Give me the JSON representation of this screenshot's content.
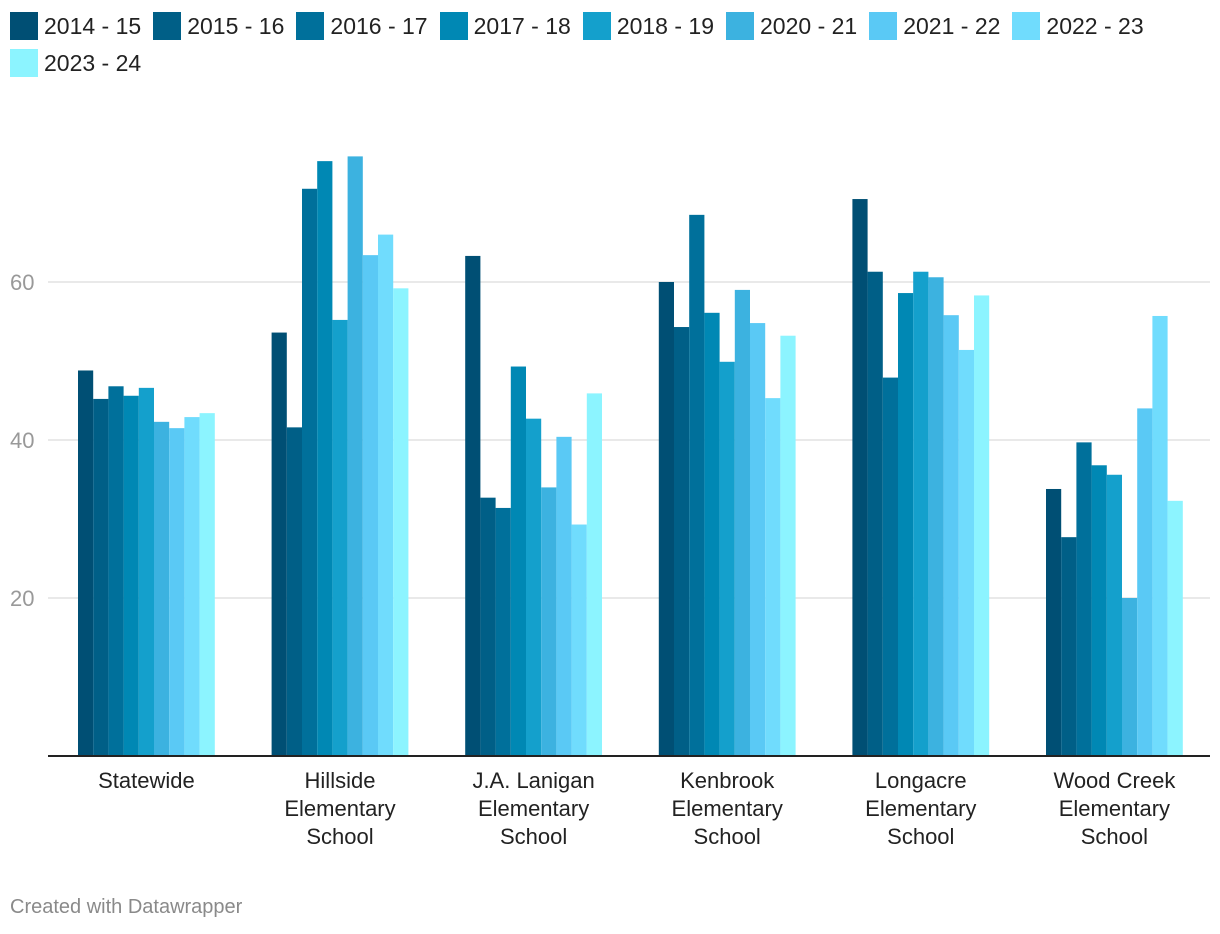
{
  "chart_data": {
    "type": "bar",
    "title": "",
    "xlabel": "",
    "ylabel": "",
    "ylim": [
      0,
      80
    ],
    "yticks": [
      20,
      40,
      60
    ],
    "grid": true,
    "legend_position": "top-left",
    "categories": [
      "Statewide",
      "Hillside Elementary School",
      "J.A. Lanigan Elementary School",
      "Kenbrook Elementary School",
      "Longacre Elementary School",
      "Wood Creek Elementary School"
    ],
    "category_label_lines": [
      [
        "Statewide"
      ],
      [
        "Hillside",
        "Elementary",
        "School"
      ],
      [
        "J.A. Lanigan",
        "Elementary",
        "School"
      ],
      [
        "Kenbrook",
        "Elementary",
        "School"
      ],
      [
        "Longacre",
        "Elementary",
        "School"
      ],
      [
        "Wood Creek",
        "Elementary",
        "School"
      ]
    ],
    "series": [
      {
        "name": "2014 - 15",
        "color": "#004f74",
        "values": [
          48.8,
          53.6,
          63.3,
          60.0,
          70.5,
          33.8
        ]
      },
      {
        "name": "2015 - 16",
        "color": "#005f87",
        "values": [
          45.2,
          41.6,
          32.7,
          54.3,
          61.3,
          27.7
        ]
      },
      {
        "name": "2016 - 17",
        "color": "#00709b",
        "values": [
          46.8,
          71.8,
          31.4,
          68.5,
          47.9,
          39.7
        ]
      },
      {
        "name": "2017 - 18",
        "color": "#0088b4",
        "values": [
          45.6,
          75.3,
          49.3,
          56.1,
          58.6,
          36.8
        ]
      },
      {
        "name": "2018 - 19",
        "color": "#14a0cc",
        "values": [
          46.6,
          55.2,
          42.7,
          49.9,
          61.3,
          35.6
        ]
      },
      {
        "name": "2020 - 21",
        "color": "#3cb2e0",
        "values": [
          42.3,
          75.9,
          34.0,
          59.0,
          60.6,
          20.0
        ]
      },
      {
        "name": "2021 - 22",
        "color": "#5ac9f5",
        "values": [
          41.5,
          63.4,
          40.4,
          54.8,
          55.8,
          44.0
        ]
      },
      {
        "name": "2022 - 23",
        "color": "#70dcfd",
        "values": [
          42.9,
          66.0,
          29.3,
          45.3,
          51.4,
          55.7
        ]
      },
      {
        "name": "2023 - 24",
        "color": "#8cf4ff",
        "values": [
          43.4,
          59.2,
          45.9,
          53.2,
          58.3,
          32.3
        ]
      }
    ]
  },
  "footer": {
    "credit": "Created with Datawrapper"
  }
}
